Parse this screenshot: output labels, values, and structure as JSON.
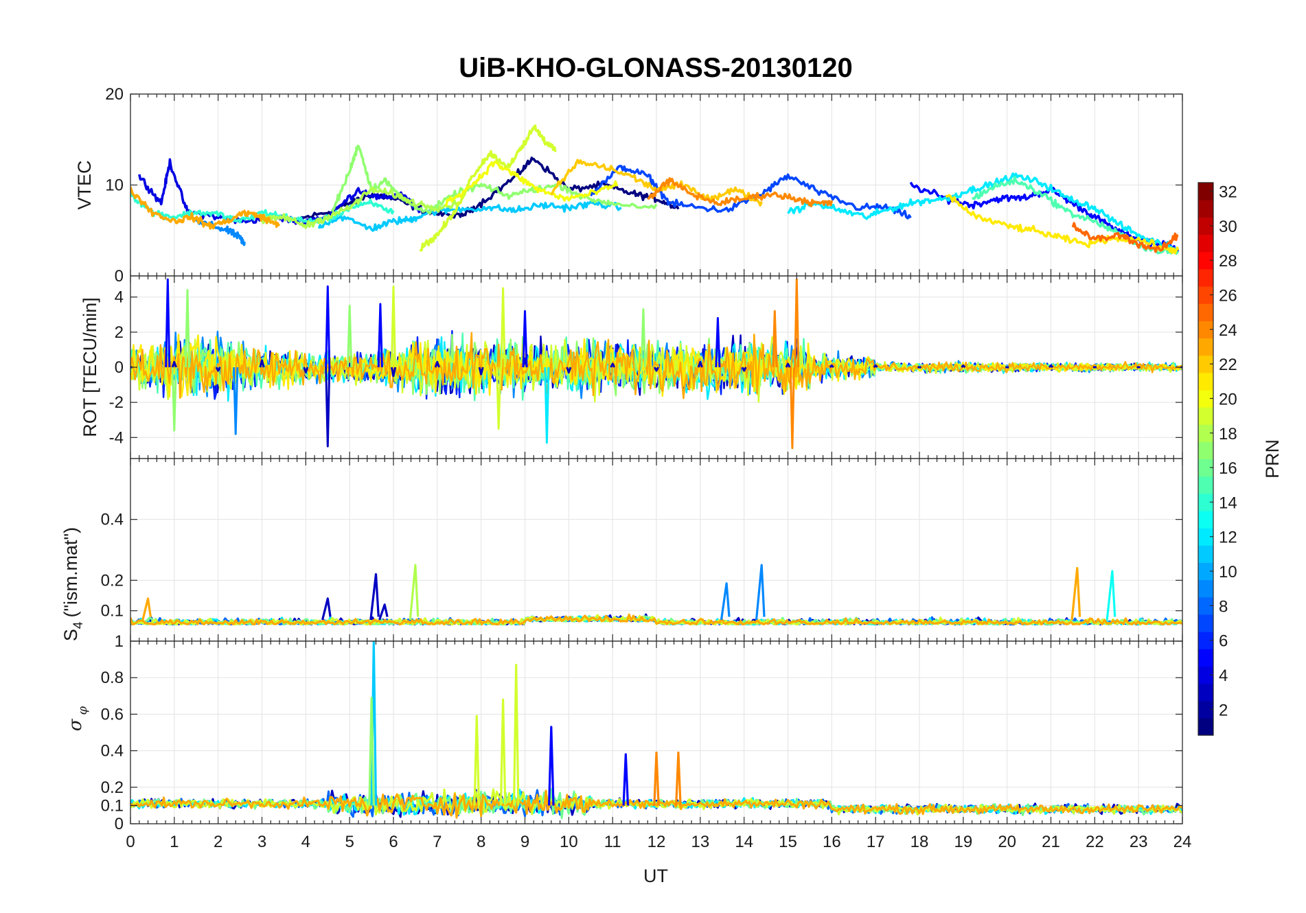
{
  "chart_data": {
    "type": "line",
    "title": "UiB-KHO-GLONASS-20130120",
    "xlabel": "UT",
    "xlim": [
      0,
      24
    ],
    "xticks": [
      0,
      1,
      2,
      3,
      4,
      5,
      6,
      7,
      8,
      9,
      10,
      11,
      12,
      13,
      14,
      15,
      16,
      17,
      18,
      19,
      20,
      21,
      22,
      23,
      24
    ],
    "grid": true,
    "colorbar": {
      "label": "PRN",
      "range": [
        1,
        32
      ],
      "ticks": [
        2,
        4,
        6,
        8,
        10,
        12,
        14,
        16,
        18,
        20,
        22,
        24,
        26,
        28,
        30,
        32
      ],
      "colormap": "jet"
    },
    "panels": [
      {
        "id": "vtec",
        "ylabel": "VTEC",
        "ylim": [
          0,
          20
        ],
        "yticks": [
          0,
          10,
          20
        ],
        "series": [
          {
            "prn": 1,
            "x": [
              3.6,
              4.5,
              5.0,
              5.5,
              6.0,
              6.8,
              7.5,
              8.0,
              8.8,
              9.2,
              10.0,
              10.8,
              11.5,
              12.0,
              12.5
            ],
            "y": [
              6,
              7,
              8,
              9,
              8.5,
              7,
              6.5,
              8,
              11,
              13,
              9.5,
              10,
              9,
              8.5,
              7.5
            ]
          },
          {
            "prn": 4,
            "x": [
              0.2,
              0.7,
              0.9,
              1.3,
              2.0,
              2.5,
              3.3,
              3.8,
              4.5,
              5.2,
              5.7,
              6.2,
              6.6
            ],
            "y": [
              11,
              8,
              12.5,
              7,
              6.5,
              6,
              6.5,
              6,
              6.5,
              9.5,
              8.5,
              9,
              7
            ]
          },
          {
            "prn": 5,
            "x": [
              17.8,
              18.6,
              19.2,
              19.8,
              20.4,
              21.0,
              21.5,
              22.0,
              22.5,
              23.0,
              23.5,
              23.9
            ],
            "y": [
              10,
              8.5,
              7.8,
              8.5,
              8.6,
              9.5,
              8,
              6.5,
              5,
              4,
              3.5,
              3
            ]
          },
          {
            "prn": 7,
            "x": [
              10.5,
              11.2,
              11.8,
              12.3,
              13.0,
              13.6,
              14.4,
              15.0,
              15.8,
              16.6,
              17.2,
              17.8
            ],
            "y": [
              9,
              12,
              11,
              8,
              7.5,
              7.2,
              9,
              11,
              9,
              7.5,
              7.6,
              6.5
            ]
          },
          {
            "prn": 9,
            "x": [
              1.5,
              1.9,
              2.3,
              2.5,
              2.6
            ],
            "y": [
              6,
              5.5,
              4.8,
              4.2,
              3.5
            ]
          },
          {
            "prn": 11,
            "x": [
              4.3,
              4.8,
              5.5,
              6.0,
              6.4,
              6.8,
              7.4,
              8.2,
              8.8,
              9.4,
              10.0,
              10.6,
              11.2
            ],
            "y": [
              5.5,
              6.5,
              5.2,
              6,
              6.2,
              7,
              7.3,
              7.5,
              7.2,
              7.8,
              7.5,
              8,
              7.5
            ]
          },
          {
            "prn": 12,
            "x": [
              15.0,
              15.6,
              16.2,
              16.8,
              17.4,
              18.0,
              18.6,
              19.2,
              19.6,
              20.2,
              20.8,
              21.4,
              22.0,
              22.6,
              23.2,
              23.9
            ],
            "y": [
              7,
              8,
              7.2,
              6.5,
              7.5,
              8.2,
              8.5,
              9.5,
              10,
              11,
              10.2,
              8.5,
              7.5,
              5.5,
              4,
              3
            ]
          },
          {
            "prn": 14,
            "x": [
              0.0,
              0.5,
              1.0,
              1.5,
              2.0,
              2.5,
              3.0,
              3.5,
              4.0,
              4.5,
              5.0,
              5.5,
              6.0
            ],
            "y": [
              9,
              7,
              6.5,
              7,
              6.8,
              6,
              7,
              6.5,
              6,
              6.2,
              7.5,
              8,
              7
            ]
          },
          {
            "prn": 15,
            "x": [
              19.2,
              19.7,
              20.2,
              20.8,
              21.4,
              22.0,
              22.6,
              23.2,
              23.9
            ],
            "y": [
              8.5,
              9.8,
              10.5,
              9,
              7,
              6,
              4.5,
              3,
              2.5
            ]
          },
          {
            "prn": 17,
            "x": [
              4.6,
              5.0,
              5.2,
              5.5,
              5.8,
              6.2,
              6.8,
              7.4,
              8.0,
              8.6,
              9.2,
              9.8,
              10.4,
              11.0,
              12.0
            ],
            "y": [
              7,
              11.5,
              14.5,
              9.5,
              10.5,
              8.5,
              7,
              9,
              10,
              8.8,
              9.5,
              10,
              8.5,
              8,
              7.5
            ]
          },
          {
            "prn": 18,
            "x": [
              3.0,
              3.5,
              4.0,
              4.5,
              5.0,
              5.5,
              6.0,
              6.5,
              7.0,
              7.5
            ],
            "y": [
              6,
              6.5,
              5.5,
              6.5,
              7.5,
              9.5,
              9,
              8,
              7.5,
              8
            ]
          },
          {
            "prn": 19,
            "x": [
              6.6,
              7.0,
              7.4,
              7.8,
              8.2,
              8.6,
              9.0,
              9.2,
              9.5,
              9.7
            ],
            "y": [
              3,
              4.5,
              7,
              11,
              13.5,
              12,
              14.5,
              16.5,
              14.5,
              14
            ]
          },
          {
            "prn": 20,
            "x": [
              7.2,
              7.8,
              8.3,
              8.8,
              9.3,
              9.9,
              10.5,
              11.1
            ],
            "y": [
              8,
              10,
              12.5,
              11,
              9.5,
              8.5,
              9,
              10
            ]
          },
          {
            "prn": 21,
            "x": [
              18.6,
              19.3,
              20.0,
              20.6,
              21.2,
              21.8,
              22.4,
              23.0,
              23.6,
              23.9
            ],
            "y": [
              9,
              6.5,
              5.5,
              5,
              4.2,
              3.5,
              4.2,
              4,
              3,
              2.8
            ]
          },
          {
            "prn": 22,
            "x": [
              9.6,
              10.2,
              10.8,
              11.4,
              12.0,
              12.6,
              13.2,
              13.8,
              14.4
            ],
            "y": [
              9,
              12.5,
              12,
              11,
              9.5,
              10,
              8.5,
              9.5,
              8
            ]
          },
          {
            "prn": 23,
            "x": [
              0.0,
              0.5,
              1.0,
              1.4,
              1.8,
              2.2,
              2.6,
              3.0,
              3.4
            ],
            "y": [
              9.5,
              7,
              6,
              6.5,
              5.5,
              6,
              7,
              6.5,
              5.5
            ]
          },
          {
            "prn": 24,
            "x": [
              11.8,
              12.3,
              12.8,
              13.4,
              14.0,
              14.6,
              15.2,
              15.6,
              16.0
            ],
            "y": [
              8.5,
              10.5,
              9,
              8,
              8.5,
              9,
              8.5,
              8,
              8
            ]
          },
          {
            "prn": 25,
            "x": [
              21.5,
              22.0,
              22.6,
              23.0,
              23.5,
              23.9
            ],
            "y": [
              5.5,
              4,
              4.5,
              3.5,
              2.8,
              4.5
            ]
          }
        ]
      },
      {
        "id": "rot",
        "ylabel": "ROT [TECU/min]",
        "ylim": [
          -5.2,
          5.2
        ],
        "yticks": [
          -4,
          -2,
          0,
          2,
          4
        ],
        "series": [
          {
            "prn": 3,
            "x": [
              0.0,
              1.0,
              2.0,
              3.0,
              4.0,
              4.5,
              5.0,
              6.0,
              7.0,
              8.0,
              9.0,
              10.0,
              11.0,
              12.0,
              13.0,
              14.0,
              15.0,
              16.0,
              17.0,
              18.0,
              19.0,
              20.0,
              21.0,
              22.0,
              23.0,
              24.0
            ],
            "y": [
              0,
              0.3,
              -0.2,
              0.4,
              -0.3,
              -4.5,
              0.2,
              -0.5,
              0.3,
              -0.4,
              0.5,
              -0.3,
              0.2,
              -0.2,
              0.3,
              -0.2,
              0.2,
              0.1,
              0.1,
              0.0,
              0.1,
              0.0,
              0.1,
              0.0,
              0.0,
              0.0
            ]
          },
          {
            "prn": 5,
            "x": [
              0.85,
              4.5,
              5.7,
              9.0,
              13.4
            ],
            "y": [
              5,
              4.6,
              3.6,
              3.2,
              2.8
            ]
          },
          {
            "prn": 9,
            "x": [
              2.4
            ],
            "y": [
              -3.8
            ]
          },
          {
            "prn": 12,
            "x": [
              9.5
            ],
            "y": [
              -4.3
            ]
          },
          {
            "prn": 17,
            "x": [
              1.3,
              1.0,
              5.0,
              11.7
            ],
            "y": [
              4.4,
              -3.6,
              3.5,
              3.3
            ]
          },
          {
            "prn": 19,
            "x": [
              6.0,
              8.5,
              8.4
            ],
            "y": [
              4.6,
              4.5,
              -3.5
            ]
          },
          {
            "prn": 24,
            "x": [
              15.2,
              15.1,
              14.7
            ],
            "y": [
              5.0,
              -4.6,
              3.2
            ]
          }
        ]
      },
      {
        "id": "s4",
        "ylabel": "S4 (\"ism.mat\")",
        "ylabel_main": "S",
        "ylabel_sub": "4",
        "ylabel_rest": "(\"ism.mat\")",
        "ylim": [
          0,
          0.6
        ],
        "yticks": [
          0.1,
          0.2,
          0.4
        ],
        "series": [
          {
            "prn": 3,
            "x": [
              4.5,
              5.6,
              5.8
            ],
            "y": [
              0.14,
              0.22,
              0.12
            ]
          },
          {
            "prn": 9,
            "x": [
              13.6,
              14.4
            ],
            "y": [
              0.19,
              0.25
            ]
          },
          {
            "prn": 18,
            "x": [
              6.5
            ],
            "y": [
              0.25
            ]
          },
          {
            "prn": 13,
            "x": [
              22.4
            ],
            "y": [
              0.23
            ]
          },
          {
            "prn": 23,
            "x": [
              21.6,
              0.4
            ],
            "y": [
              0.24,
              0.14
            ]
          }
        ]
      },
      {
        "id": "sigma",
        "ylabel": "σφ",
        "ylabel_main": "σ",
        "ylabel_sub": "φ",
        "ylim": [
          0,
          1
        ],
        "yticks": [
          0,
          0.1,
          0.2,
          0.4,
          0.6,
          0.8,
          1
        ],
        "series": [
          {
            "prn": 11,
            "x": [
              5.55
            ],
            "y": [
              1.0
            ]
          },
          {
            "prn": 19,
            "x": [
              8.8,
              8.5,
              7.9
            ],
            "y": [
              0.87,
              0.68,
              0.59
            ]
          },
          {
            "prn": 17,
            "x": [
              5.5
            ],
            "y": [
              0.69
            ]
          },
          {
            "prn": 5,
            "x": [
              9.6,
              11.3
            ],
            "y": [
              0.53,
              0.38
            ]
          },
          {
            "prn": 24,
            "x": [
              12.0,
              12.5
            ],
            "y": [
              0.39,
              0.39
            ]
          }
        ]
      }
    ]
  }
}
